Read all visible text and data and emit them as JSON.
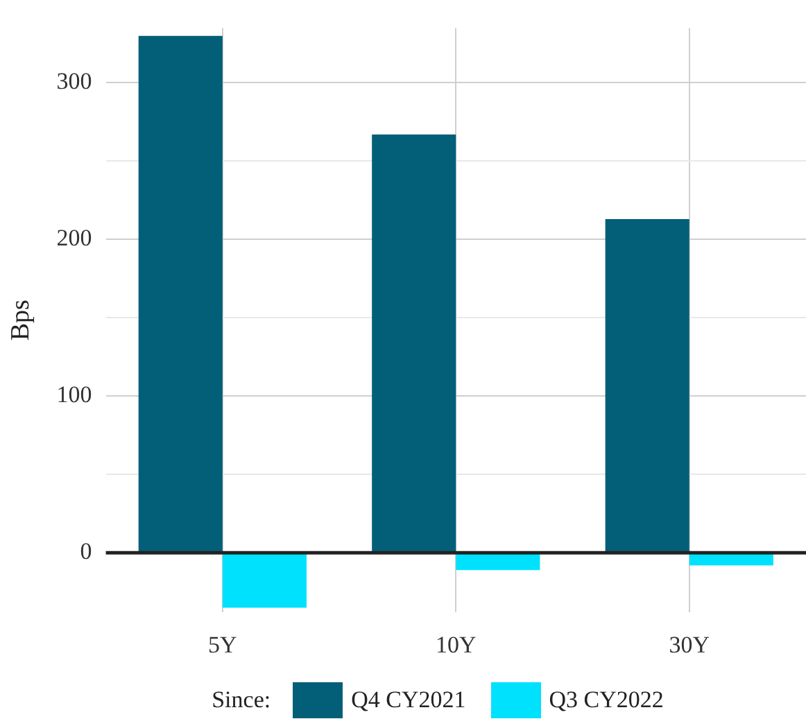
{
  "chart_data": {
    "type": "bar",
    "categories": [
      "5Y",
      "10Y",
      "30Y"
    ],
    "ylabel": "Bps",
    "legend_title": "Since:",
    "legend": "bottom",
    "grid": true,
    "series": [
      {
        "name": "Q4 CY2021",
        "color": "#035f77",
        "values": [
          330,
          267,
          213
        ]
      },
      {
        "name": "Q3 CY2022",
        "color": "#00e1fe",
        "values": [
          -35,
          -11,
          -8
        ]
      }
    ],
    "ylim": [
      -38,
      335
    ],
    "yticks": [
      0,
      {
        "value": 50,
        "label": null
      },
      100,
      {
        "value": 150,
        "label": null
      },
      200,
      {
        "value": 250,
        "label": null
      },
      300
    ],
    "ref_lines": [
      {
        "axis": "y",
        "value": 0,
        "color": "#222222"
      }
    ]
  }
}
